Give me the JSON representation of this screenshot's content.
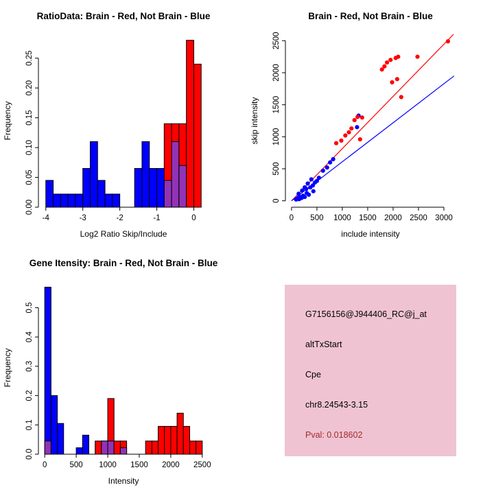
{
  "window": {
    "background": "#ffffff"
  },
  "colors": {
    "brain": "#ff0000",
    "not_brain": "#0000ff",
    "overlap": "#9233b6",
    "axis": "#000000"
  },
  "chart_data": [
    {
      "type": "histogram",
      "title": "RatioData: Brain - Red, Not Brain - Blue",
      "xlabel": "Log2 Ratio Skip/Include",
      "ylabel": "Frequency",
      "xlim": [
        -4.2,
        0.4
      ],
      "ylim": [
        0,
        0.29
      ],
      "xticks": [
        -4,
        -3,
        -2,
        -1,
        0
      ],
      "xtick_labels": [
        "-4",
        "-3",
        "-2",
        "-1",
        "0"
      ],
      "yticks": [
        0,
        0.05,
        0.1,
        0.15,
        0.2,
        0.25
      ],
      "ytick_labels": [
        "0.00",
        "0.05",
        "0.10",
        "0.15",
        "0.20",
        "0.25"
      ],
      "bins": {
        "start": -4.0,
        "width": 0.2,
        "blue": [
          0.045,
          0.022,
          0.022,
          0.022,
          0.022,
          0.065,
          0.11,
          0.045,
          0.022,
          0.022,
          0,
          0,
          0.065,
          0.11,
          0.065,
          0.065,
          0.045,
          0.11,
          0.07,
          0,
          0
        ],
        "red": [
          0,
          0,
          0,
          0,
          0,
          0,
          0,
          0,
          0,
          0,
          0,
          0,
          0,
          0,
          0,
          0,
          0.14,
          0.14,
          0.14,
          0.28,
          0.24
        ]
      }
    },
    {
      "type": "scatter",
      "title": "Brain - Red, Not Brain - Blue",
      "xlabel": "include intensity",
      "ylabel": "skip intensity",
      "xlim": [
        -120,
        3230
      ],
      "ylim": [
        -100,
        2600
      ],
      "xticks": [
        0,
        500,
        1000,
        1500,
        2000,
        2500,
        3000
      ],
      "xtick_labels": [
        "0",
        "500",
        "1000",
        "1500",
        "2000",
        "2500",
        "3000"
      ],
      "yticks": [
        0,
        500,
        1000,
        1500,
        2000,
        2500
      ],
      "ytick_labels": [
        "0",
        "500",
        "1000",
        "1500",
        "2000",
        "2500"
      ],
      "series": [
        {
          "name": "Not Brain",
          "color": "not_brain",
          "points": [
            [
              90,
              20
            ],
            [
              120,
              35
            ],
            [
              150,
              25
            ],
            [
              170,
              60
            ],
            [
              200,
              45
            ],
            [
              230,
              80
            ],
            [
              260,
              60
            ],
            [
              140,
              110
            ],
            [
              300,
              120
            ],
            [
              340,
              95
            ],
            [
              210,
              160
            ],
            [
              290,
              185
            ],
            [
              370,
              210
            ],
            [
              420,
              240
            ],
            [
              320,
              270
            ],
            [
              460,
              285
            ],
            [
              500,
              310
            ],
            [
              390,
              335
            ],
            [
              540,
              360
            ],
            [
              260,
              210
            ],
            [
              430,
              150
            ],
            [
              620,
              470
            ],
            [
              700,
              520
            ],
            [
              760,
              600
            ],
            [
              820,
              650
            ],
            [
              1320,
              1330
            ],
            [
              1290,
              1150
            ]
          ]
        },
        {
          "name": "Brain",
          "color": "brain",
          "points": [
            [
              880,
              900
            ],
            [
              980,
              940
            ],
            [
              1060,
              1020
            ],
            [
              1130,
              1070
            ],
            [
              1180,
              1130
            ],
            [
              1240,
              1260
            ],
            [
              1300,
              1310
            ],
            [
              1390,
              1300
            ],
            [
              1350,
              960
            ],
            [
              1780,
              2050
            ],
            [
              1830,
              2100
            ],
            [
              1880,
              2160
            ],
            [
              1950,
              2200
            ],
            [
              2050,
              2230
            ],
            [
              2100,
              2250
            ],
            [
              2080,
              1900
            ],
            [
              1980,
              1850
            ],
            [
              2160,
              1620
            ],
            [
              2480,
              2250
            ],
            [
              3080,
              2490
            ]
          ]
        }
      ],
      "lines": [
        {
          "name": "brain-fit",
          "color": "brain",
          "x1": 0,
          "y1": 0,
          "x2": 3190,
          "y2": 2600
        },
        {
          "name": "not-brain-fit",
          "color": "not_brain",
          "x1": 0,
          "y1": 0,
          "x2": 3200,
          "y2": 1950
        }
      ]
    },
    {
      "type": "histogram",
      "title": "Gene Itensity: Brain - Red, Not Brain - Blue",
      "xlabel": "Intensity",
      "ylabel": "Frequency",
      "xlim": [
        -100,
        2600
      ],
      "ylim": [
        0,
        0.59
      ],
      "xticks": [
        0,
        500,
        1000,
        1500,
        2000,
        2500
      ],
      "xtick_labels": [
        "0",
        "500",
        "1000",
        "1500",
        "2000",
        "2500"
      ],
      "yticks": [
        0,
        0.1,
        0.2,
        0.3,
        0.4,
        0.5
      ],
      "ytick_labels": [
        "0.0",
        "0.1",
        "0.2",
        "0.3",
        "0.4",
        "0.5"
      ],
      "bins": {
        "start": 0,
        "width": 100,
        "blue": [
          0.57,
          0.2,
          0.105,
          0,
          0,
          0.022,
          0.065,
          0,
          0,
          0.045,
          0.045,
          0,
          0.022,
          0,
          0,
          0,
          0,
          0,
          0,
          0,
          0,
          0,
          0,
          0,
          0
        ],
        "red": [
          0.045,
          0,
          0,
          0,
          0,
          0,
          0,
          0,
          0.045,
          0.045,
          0.19,
          0.045,
          0.045,
          0,
          0,
          0,
          0.045,
          0.045,
          0.095,
          0.095,
          0.095,
          0.14,
          0.095,
          0.045,
          0.045
        ]
      }
    }
  ],
  "info_panel": {
    "background": "#efc3d2",
    "lines": [
      {
        "text": "G7156156@J944406_RC@j_at",
        "color": "#000000"
      },
      {
        "text": "altTxStart",
        "color": "#000000"
      },
      {
        "text": "Cpe",
        "color": "#000000"
      },
      {
        "text": "chr8.24543-3.15",
        "color": "#000000"
      },
      {
        "text": "Pval: 0.018602",
        "color": "#a52a2a"
      }
    ]
  }
}
